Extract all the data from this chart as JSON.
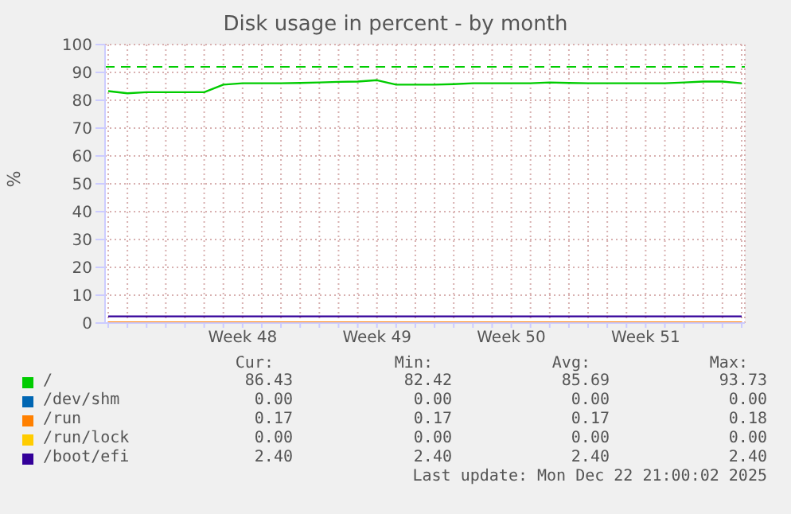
{
  "chart_data": {
    "type": "line",
    "title": "Disk usage in percent - by month",
    "ylabel": "%",
    "categories": [
      null,
      null,
      null,
      null,
      null,
      null,
      null,
      "Week 48",
      null,
      null,
      null,
      null,
      null,
      null,
      "Week 49",
      null,
      null,
      null,
      null,
      null,
      null,
      "Week 50",
      null,
      null,
      null,
      null,
      null,
      null,
      "Week 51",
      null,
      null,
      null,
      null,
      null
    ],
    "series": [
      {
        "name": "/",
        "color": "#00cc00",
        "values": [
          83.3,
          82.5,
          82.9,
          82.9,
          82.9,
          82.9,
          85.6,
          86.1,
          86.1,
          86.1,
          86.2,
          86.4,
          86.6,
          86.7,
          87.2,
          85.6,
          85.6,
          85.6,
          85.8,
          86.1,
          86.1,
          86.1,
          86.1,
          86.4,
          86.2,
          86.1,
          86.1,
          86.1,
          86.1,
          86.1,
          86.4,
          86.7,
          86.7,
          86.1
        ]
      },
      {
        "name": "/dev/shm",
        "color": "#0066b3",
        "values": [
          null,
          null,
          null,
          null,
          null,
          null,
          null,
          null,
          null,
          null,
          null,
          null,
          null,
          null,
          null,
          null,
          null,
          null,
          null,
          null,
          null,
          null,
          null,
          null,
          null,
          null,
          null,
          null,
          null,
          null,
          null,
          null,
          null,
          null
        ]
      },
      {
        "name": "/run",
        "color": "#ff8000",
        "values": [
          0.2,
          0.2,
          0.2,
          0.2,
          0.2,
          0.2,
          0.2,
          0.2,
          0.2,
          0.2,
          0.2,
          0.2,
          0.2,
          0.2,
          0.2,
          0.2,
          0.2,
          0.2,
          0.2,
          0.2,
          0.2,
          0.2,
          0.2,
          0.2,
          0.2,
          0.2,
          0.2,
          0.2,
          0.2,
          0.2,
          0.2,
          0.2,
          0.2,
          0.2
        ]
      },
      {
        "name": "/run/lock",
        "color": "#ffcc00",
        "values": [
          null,
          null,
          null,
          null,
          null,
          null,
          null,
          null,
          null,
          null,
          null,
          null,
          null,
          null,
          null,
          null,
          null,
          null,
          null,
          null,
          null,
          null,
          null,
          null,
          null,
          null,
          null,
          null,
          null,
          null,
          null,
          null,
          null,
          null
        ]
      },
      {
        "name": "/boot/efi",
        "color": "#330099",
        "values": [
          2.4,
          2.4,
          2.4,
          2.4,
          2.4,
          2.4,
          2.4,
          2.4,
          2.4,
          2.4,
          2.4,
          2.4,
          2.4,
          2.4,
          2.4,
          2.4,
          2.4,
          2.4,
          2.4,
          2.4,
          2.4,
          2.4,
          2.4,
          2.4,
          2.4,
          2.4,
          2.4,
          2.4,
          2.4,
          2.4,
          2.4,
          2.4,
          2.4,
          2.4
        ]
      }
    ],
    "ylim": [
      0,
      100
    ],
    "yticks": [
      0,
      10,
      20,
      30,
      40,
      50,
      60,
      70,
      80,
      90,
      100
    ],
    "grid": true,
    "legend": "bottom",
    "marker": "none",
    "line_style": "solid",
    "ref_lines": [
      {
        "axis": "y",
        "value": 92,
        "color": "#00cc00",
        "line_style": "dashed"
      }
    ],
    "annotations": [
      "Cur:",
      "Min:",
      "Avg:",
      "Max:",
      "86.43",
      "82.42",
      "85.69",
      "93.73",
      "0.00",
      "0.00",
      "0.00",
      "0.00",
      "0.17",
      "0.17",
      "0.17",
      "0.18",
      "0.00",
      "0.00",
      "0.00",
      "0.00",
      "2.40",
      "2.40",
      "2.40",
      "2.40",
      "Last update: Mon Dec 22 21:00:02 2025"
    ]
  }
}
